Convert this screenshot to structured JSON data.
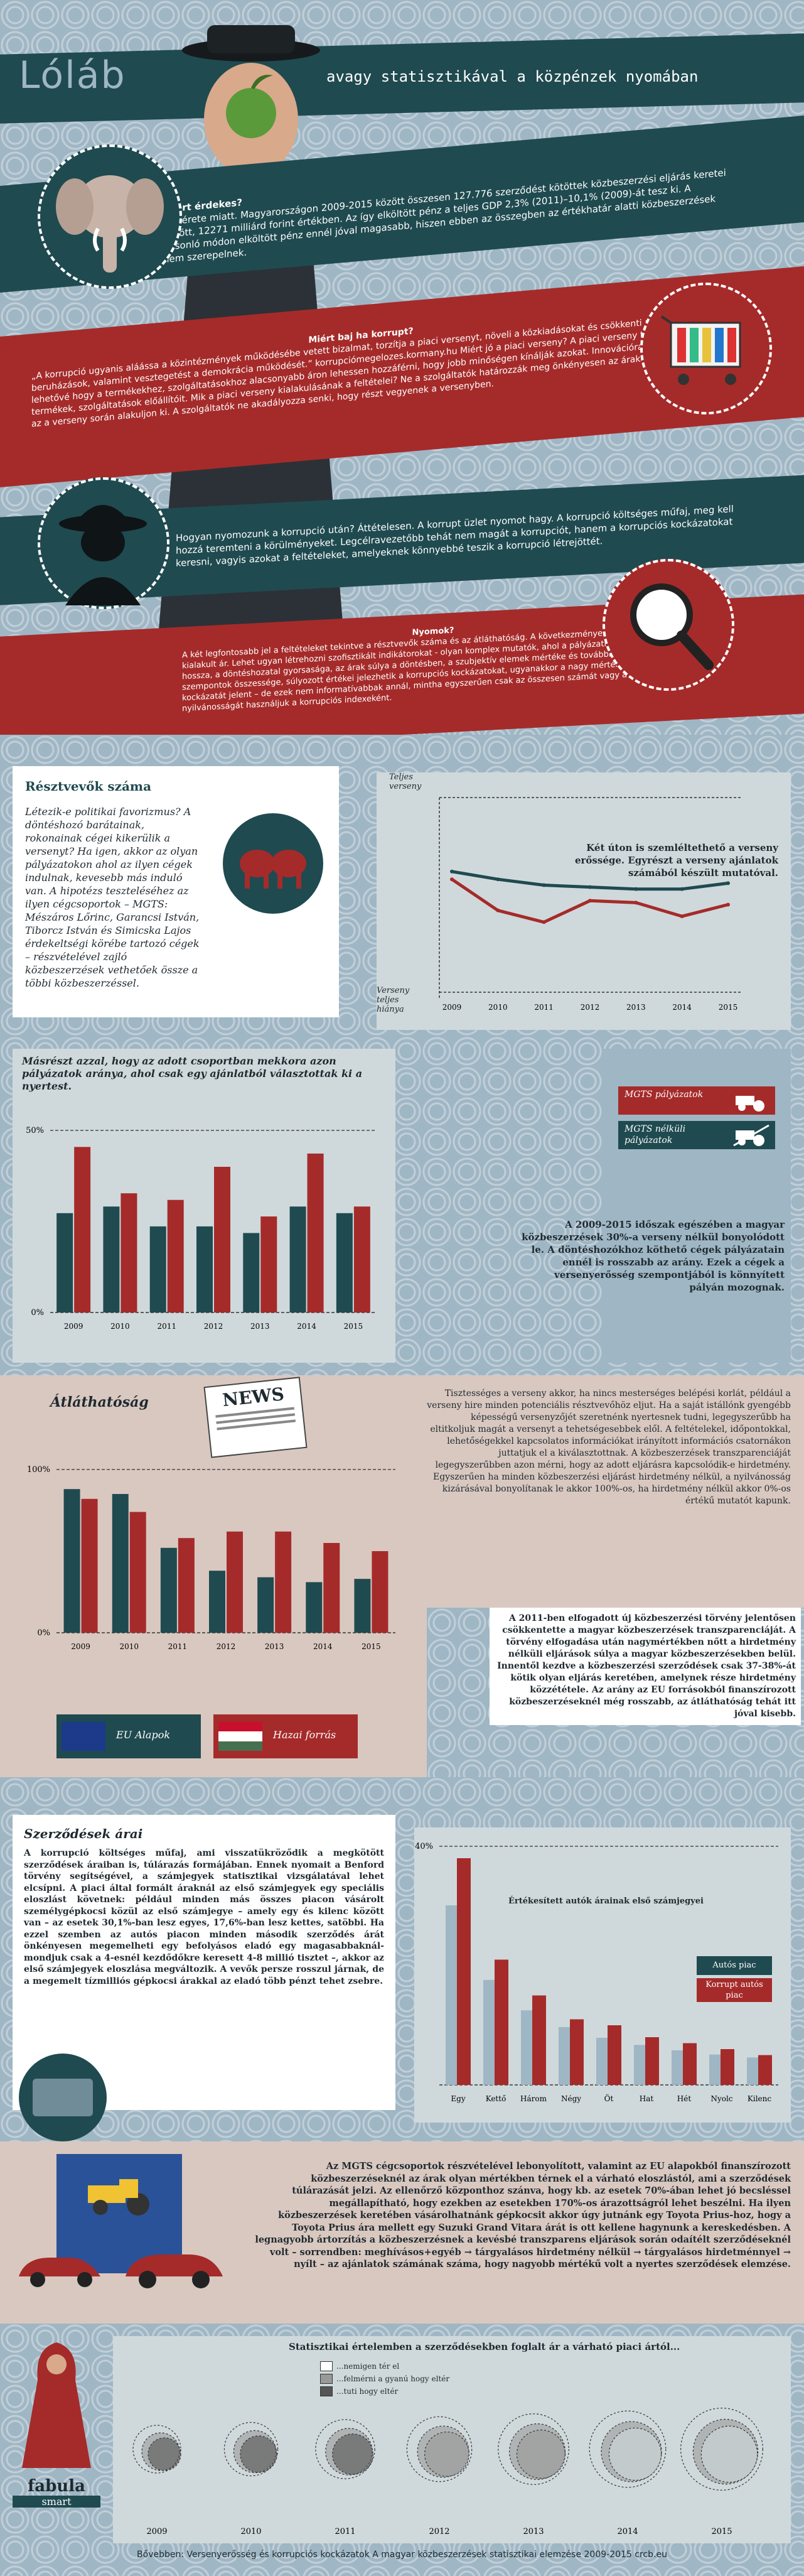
{
  "header": {
    "title": "Lóláb",
    "subtitle": "avagy statisztikával a közpénzek nyomában"
  },
  "intro": {
    "miert_erdekes_title": "Miért érdekes?",
    "miert_erdekes_text": "A mérete miatt. Magyarországon 2009-2015 között összesen 127.776 szerződést kötöttek közbeszerzési eljárás keretei között, 12271 milliárd forint értékben. Az így elköltött pénz a teljes GDP 2,3% (2011)–10,1% (2009)-át tesz ki. A hasonló módon elköltött pénz ennél jóval magasabb, hiszen ebben az összegben az értékhatár alatti közbeszerzések nem szerepelnek.",
    "miert_baj_title": "Miért baj ha korrupt?",
    "miert_baj_text": "„A korrupció ugyanis aláássa a közintézmények működésébe vetett bizalmat, torzítja a piaci versenyt, növeli a közkiadásokat és csökkenti az állami beruházások, valamint vesztegetést a demokrácia működését.” korrupciómegelozes.kormany.hu Miért jó a piaci verseny? A piaci verseny teszi lehetővé hogy a termékekhez, szolgáltatásokhoz alacsonyabb áron lehessen hozzáférni, hogy jobb minőségen kínálják azokat. Innovációra késztesi a termékek, szolgáltatások előállítóit. Mik a piaci verseny kialakulásának a feltételei? Ne a szolgáltatók határozzák meg önkényesen az árakat, hanem az a verseny során alakuljon ki. A szolgáltatók ne akadályozza senki, hogy részt vegyenek a versenyben.",
    "hogyan_text": "Hogyan nyomozunk a korrupció után? Áttételesen. A korrupt üzlet nyomot hagy. A korrupció költséges műfaj, meg kell hozzá teremteni a körülményeket. Legcélravezetőbb tehát nem magát a korrupciót, hanem a korrupciós kockázatokat keresni, vagyis azokat a feltételeket, amelyeknek könnyebbé teszik a korrupció létrejöttét.",
    "nyomok_title": "Nyomok?",
    "nyomok_text": "A két legfontosabb jel a feltételeket tekintve a résztvevők száma és az átláthatóság. A következményeket illetően pedig a kialakult ár. Lehet ugyan létrehozni szofisztikált indikátorokat - olyan komplex mutatók, ahol a pályázati kritériumok hossza, a döntéshozatal gyorsasága, az árak súlya a döntésben, a szubjektív elemek mértéke és további hasonló szempontok összessége, súlyozott értékei jelezhetik a korrupciós kockázatokat, ugyanakkor a nagy mértékű adattisztítás kockázatát jelent – de ezek nem informatívabbak annál, mintha egyszerűen csak az összesen számát vagy a közbeszerzés nyilvánosságát használjuk a korrupciós indexeként."
  },
  "resztvevok": {
    "title": "Résztvevők száma",
    "text": "Létezik-e politikai favorizmus? A döntéshozó barátainak, rokonainak cégei kikerülik a versenyt? Ha igen, akkor az olyan pályázatokon ahol az ilyen cégek indulnak, kevesebb más induló van. A hipotézs teszteléséhez az ilyen cégcsoportok – MGTS: Mészáros Lőrinc, Garancsi István, Tiborcz István és Simicska Lajos érdekeltségi körébe tartozó cégek – részvételével zajló közbeszerzések vethetőek össze a többi közbeszerzéssel.",
    "line_note": "Két úton is szemléltethető a verseny erőssége. Egyrészt a verseny ajánlatok számából készült mutatóval.",
    "y_top": "Teljes verseny",
    "y_bottom": "Verseny teljes hiánya"
  },
  "bar1": {
    "intro": "Másrészt azzal, hogy az adott csoportban mekkora azon pályázatok aránya, ahol csak egy ajánlatból választottak ki a nyertest.",
    "legend_mgts": "MGTS pályázatok",
    "legend_other": "MGTS nélküli pályázatok",
    "text": "A 2009-2015 időszak egészében a magyar közbeszerzések 30%-a verseny nélkül bonyolódott le. A döntéshozókhoz köthető cégek pályázatain ennél is rosszabb az arány. Ezek a cégek a versenyerősség szempontjából is könnyített pályán mozognak."
  },
  "atlathatosag": {
    "title": "Átláthatóság",
    "news": "NEWS",
    "text1": "Tisztességes a verseny akkor, ha nincs mesterséges belépési korlát, például a verseny hire minden potenciális résztvevőhöz eljut. Ha a saját istállónk gyengébb képességű versenyzőjét szeretnénk nyertesnek tudni, legegyszerűbb ha eltitkoljuk magát a versenyt a tehetségesebbek elől. A feltételekel, időpontokkal, lehetőségekkel kapcsolatos információkat irányított információs csatornákon juttatjuk el a kiválasztottnak. A közbeszerzések transzparenciáját legegyszerűbben azon mérni, hogy az adott eljárásra kapcsolódik-e hirdetmény. Egyszerűen ha minden közbeszerzési eljárást hirdetmény nélkül, a nyilvánosság kizárásával bonyolítanak le akkor 100%-os, ha hirdetmény nélkül akkor 0%-os értékű mutatót kapunk.",
    "text2": "A 2011-ben elfogadott új közbeszerzési törvény jelentősen csökkentette a magyar közbeszerzések transzparenciáját. A törvény elfogadása után nagymértékben nőtt a hirdetmény nélküli eljárások súlya a magyar közbeszerzésekben belül. Innentől kezdve a közbeszerzési szerződések csak 37-38%-át kötik olyan eljárás keretében, amelynek része hirdetmény közzététele. Az arány az EU forrásokból finanszírozott közbeszerzéseknél még rosszabb, az átláthatóság tehát itt jóval kisebb.",
    "legend_eu": "EU Alapok",
    "legend_hu": "Hazai forrás"
  },
  "arak": {
    "title": "Szerződések árai",
    "text": "A korrupció költséges műfaj, ami visszatükröződik a megkötött szerződések áraiban is, túlárazás formájában. Ennek nyomait a Benford törvény segítségével, a számjegyek statisztikai vizsgálatával lehet elcsípni. A piaci által formált áraknál az első számjegyek egy speciális eloszlást követnek: például minden más összes piacon vásárolt személygépkocsi közül az első számjegye – amely egy és kilenc között van – az esetek 30,1%-ban lesz egyes, 17,6%-ban lesz kettes, satöbbi. Ha ezzel szemben az autós piacon minden második szerződés árát önkényesen megemelheti egy befolyásos eladó egy magasabbaknál- mondjuk csak a 4-esnél kezdődőkre keresett 4-8 millió tisztet –, akkor az első számjegyek eloszlása megváltozik. A vevők persze rosszul járnak, de a megemelt tízmilliós gépkocsi árakkal az eladó több pénzt tehet zsebre.",
    "chart_title": "Értékesített autók árainak első számjegyei",
    "legend_market": "Autós piac",
    "legend_corrupt": "Korrupt autós piac"
  },
  "mgts_text": "Az MGTS cégcsoportok részvételével lebonyolított, valamint az EU alapokból finanszírozott közbeszerzéseknél az árak olyan mértékben térnek el a várható eloszlástól, ami a szerződések túlárazását jelzi. Az ellenőrző központhoz szánva, hogy kb. az esetek 70%-ában lehet jó becsléssel megállapítható, hogy ezekben az esetekben 170%-os árazottságról lehet beszélni. Ha ilyen közbeszerzések keretében vásárolhatnánk gépkocsit akkor úgy jutnánk egy Toyota Prius-hoz, hogy a Toyota Prius ára mellett egy Suzuki Grand Vitara árát is ott kellene hagynunk a kereskedésben. A legnagyobb ártorzítás a közbeszerzésnek a kevésbé transzparens eljárások során odaítélt szerződéseknél volt – sorrendben: meghívásos+egyéb → tárgyalásos hirdetmény nélkül → tárgyalásos hirdetménnyel → nyílt – az ajánlatok számának száma, hogy nagyobb mértékű volt a nyertes szerződések elemzése.",
  "bubbles": {
    "title": "Statisztikai értelemben a szerződésekben foglalt ár a várható piaci ártól...",
    "legend_not": "...nemigen tér el",
    "legend_half": "...felmérni a gyanú hogy eltér",
    "legend_sure": "...tuti hogy eltér"
  },
  "footer": {
    "logo": "fabula",
    "logo_sub": "smart",
    "source": "Bővebben: Versenyerősség és korrupciós kockázatok A magyar közbeszerzések statisztikai elemzése 2009-2015 crcb.eu"
  },
  "colors": {
    "dark_teal": "#1f4a4f",
    "red": "#a52a2a",
    "slate": "#9fb6c4",
    "beige": "#d9c8c0"
  },
  "chart_data": [
    {
      "type": "line",
      "x": [
        2009,
        2010,
        2011,
        2012,
        2013,
        2014,
        2015
      ],
      "series": [
        {
          "name": "MGTS pályázatok",
          "values": [
            0.58,
            0.42,
            0.36,
            0.47,
            0.46,
            0.39,
            0.45
          ]
        },
        {
          "name": "MGTS nélküli pályázatok",
          "values": [
            0.62,
            0.58,
            0.55,
            0.54,
            0.53,
            0.53,
            0.56
          ]
        }
      ],
      "ylabel_top": "Teljes verseny",
      "ylabel_bottom": "Verseny teljes hiánya",
      "ylim": [
        0,
        1
      ]
    },
    {
      "type": "bar",
      "categories": [
        "2009",
        "2010",
        "2011",
        "2012",
        "2013",
        "2014",
        "2015"
      ],
      "series": [
        {
          "name": "MGTS nélküli pályázatok",
          "values": [
            30,
            32,
            26,
            26,
            24,
            32,
            30
          ]
        },
        {
          "name": "MGTS pályázatok",
          "values": [
            50,
            36,
            34,
            44,
            29,
            48,
            32
          ]
        }
      ],
      "ytick_top": "50%",
      "ytick_bottom": "0%",
      "ylim": [
        0,
        55
      ]
    },
    {
      "type": "bar",
      "categories": [
        "2009",
        "2010",
        "2011",
        "2012",
        "2013",
        "2014",
        "2015"
      ],
      "series": [
        {
          "name": "EU Alapok",
          "values": [
            88,
            85,
            52,
            38,
            34,
            31,
            33
          ]
        },
        {
          "name": "Hazai forrás",
          "values": [
            82,
            74,
            58,
            62,
            62,
            55,
            50
          ]
        }
      ],
      "ytick_top": "100%",
      "ytick_bottom": "0%",
      "ylim": [
        0,
        100
      ]
    },
    {
      "type": "bar",
      "categories": [
        "Egy",
        "Kettő",
        "Három",
        "Négy",
        "Öt",
        "Hat",
        "Hét",
        "Nyolc",
        "Kilenc"
      ],
      "series": [
        {
          "name": "Autós piac",
          "values": [
            30.1,
            17.6,
            12.5,
            9.7,
            7.9,
            6.7,
            5.8,
            5.1,
            4.6
          ]
        },
        {
          "name": "Korrupt autós piac",
          "values": [
            38,
            21,
            15,
            11,
            10,
            8,
            7,
            6,
            5
          ]
        }
      ],
      "ytick_top": "40%",
      "ylim": [
        0,
        40
      ]
    },
    {
      "type": "scatter",
      "x": [
        "2009",
        "2010",
        "2011",
        "2012",
        "2013",
        "2014",
        "2015"
      ],
      "series": [
        {
          "name": "...nemigen tér el",
          "values": [
            3,
            3,
            3,
            3,
            3,
            3,
            3
          ]
        },
        {
          "name": "...felmérni a gyanú hogy eltér",
          "values": [
            2,
            2,
            2,
            2,
            2,
            2,
            2
          ]
        },
        {
          "name": "...tuti hogy eltér",
          "values": [
            1,
            1,
            1,
            2,
            2,
            3,
            3
          ]
        }
      ]
    }
  ]
}
